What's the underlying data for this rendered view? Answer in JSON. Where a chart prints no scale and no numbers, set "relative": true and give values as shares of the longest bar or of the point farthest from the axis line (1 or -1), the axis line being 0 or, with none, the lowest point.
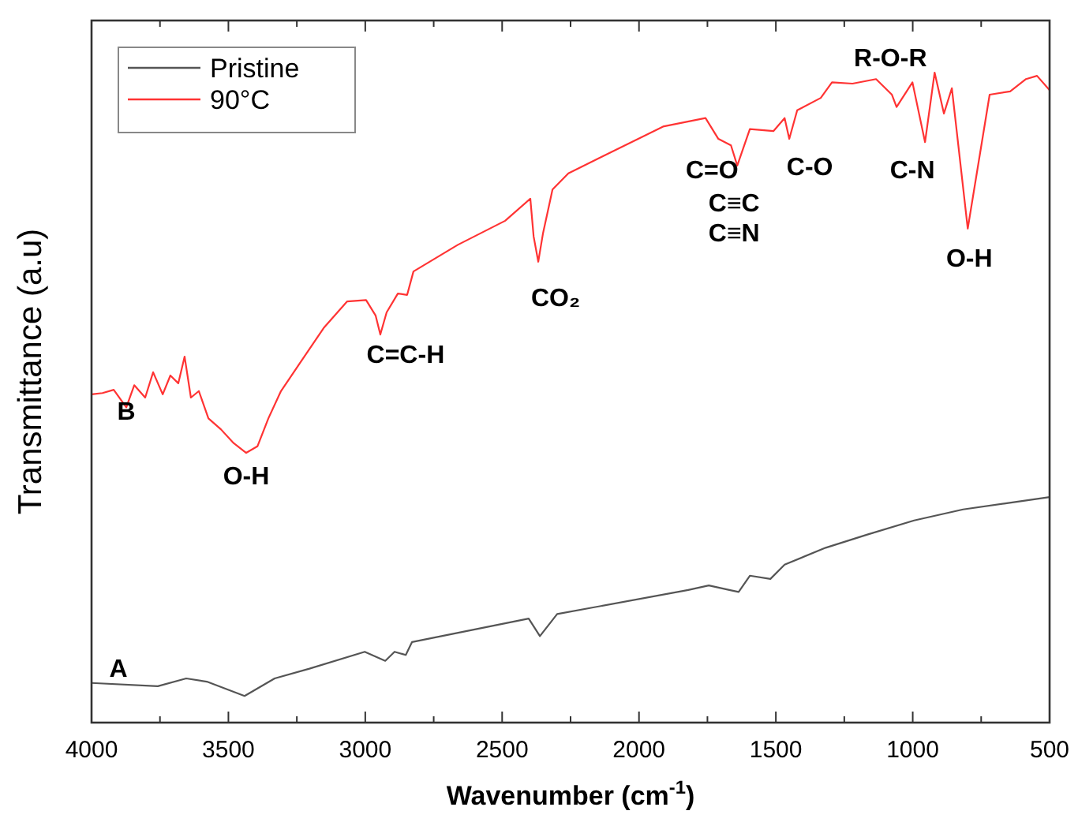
{
  "chart_data": {
    "type": "line",
    "relative": true,
    "xlabel": "Wavenumber (cm$^{-1}$)",
    "ylabel": "Transmittance (a.u)",
    "legend": "top left",
    "xlim": [
      4000,
      500
    ],
    "xticks": [
      4000,
      {
        "value": 3750,
        "label": null
      },
      3500,
      {
        "value": 3250,
        "label": null
      },
      3000,
      {
        "value": 2750,
        "label": null
      },
      2500,
      {
        "value": 2250,
        "label": null
      },
      2000,
      {
        "value": 1750,
        "label": null
      },
      1500,
      {
        "value": 1250,
        "label": null
      },
      1000,
      {
        "value": 750,
        "label": null
      },
      500
    ],
    "series": [
      {
        "name": "Pristine",
        "color": "#555555",
        "x": [
          4000,
          3758,
          3654,
          3579,
          3441,
          3331,
          3204,
          3002,
          2927,
          2893,
          2852,
          2829,
          2403,
          2362,
          2299,
          1820,
          1745,
          1670,
          1636,
          1595,
          1520,
          1468,
          1318,
          1168,
          995,
          816,
          666,
          500
        ],
        "values": [
          0.061,
          0.056,
          0.068,
          0.063,
          0.041,
          0.068,
          0.083,
          0.109,
          0.095,
          0.109,
          0.104,
          0.124,
          0.16,
          0.133,
          0.167,
          0.204,
          0.211,
          0.204,
          0.201,
          0.226,
          0.221,
          0.243,
          0.269,
          0.289,
          0.311,
          0.328,
          0.337,
          0.347
        ]
      },
      {
        "name": "90°C",
        "color": "#ff3333",
        "x": [
          4000,
          3960,
          3919,
          3873,
          3844,
          3804,
          3775,
          3740,
          3712,
          3683,
          3660,
          3637,
          3608,
          3573,
          3527,
          3481,
          3435,
          3394,
          3354,
          3308,
          3239,
          3152,
          3066,
          2997,
          2962,
          2945,
          2922,
          2881,
          2847,
          2824,
          2662,
          2489,
          2397,
          2385,
          2368,
          2351,
          2316,
          2258,
          1912,
          1757,
          1710,
          1664,
          1641,
          1595,
          1509,
          1468,
          1451,
          1422,
          1336,
          1295,
          1220,
          1134,
          1076,
          1059,
          1001,
          955,
          920,
          886,
          857,
          799,
          719,
          644,
          586,
          546,
          500
        ],
        "values": [
          0.505,
          0.507,
          0.512,
          0.485,
          0.519,
          0.5,
          0.539,
          0.505,
          0.534,
          0.522,
          0.563,
          0.5,
          0.51,
          0.468,
          0.451,
          0.43,
          0.415,
          0.425,
          0.468,
          0.51,
          0.553,
          0.607,
          0.648,
          0.65,
          0.626,
          0.597,
          0.631,
          0.66,
          0.658,
          0.694,
          0.735,
          0.772,
          0.806,
          0.748,
          0.709,
          0.752,
          0.82,
          0.845,
          0.917,
          0.93,
          0.898,
          0.888,
          0.857,
          0.913,
          0.91,
          0.93,
          0.898,
          0.942,
          0.961,
          0.985,
          0.983,
          0.99,
          0.966,
          0.947,
          0.985,
          0.893,
          1.0,
          0.937,
          0.976,
          0.76,
          0.966,
          0.971,
          0.99,
          0.995,
          0.973
        ]
      }
    ],
    "annotations": [
      {
        "text": "A",
        "x": 4000,
        "y": 0.061
      },
      {
        "text": "B",
        "x": 4000,
        "y": 0.505
      },
      {
        "text": "O-H",
        "x": 3435,
        "y": 0.415
      },
      {
        "text": "C=C-H",
        "x": 2945,
        "y": 0.597
      },
      {
        "text": "CO₂",
        "x": 2368,
        "y": 0.709
      },
      {
        "text": "C=O",
        "x": 1710,
        "y": 0.898
      },
      {
        "text": "C≡C",
        "x": 1641,
        "y": 0.857
      },
      {
        "text": "C≡N",
        "x": 1641,
        "y": 0.857
      },
      {
        "text": "C-O",
        "x": 1451,
        "y": 0.898
      },
      {
        "text": "R-O-R",
        "x": 920,
        "y": 1.0
      },
      {
        "text": "C-N",
        "x": 955,
        "y": 0.893
      },
      {
        "text": "O-H",
        "x": 799,
        "y": 0.76
      }
    ]
  }
}
